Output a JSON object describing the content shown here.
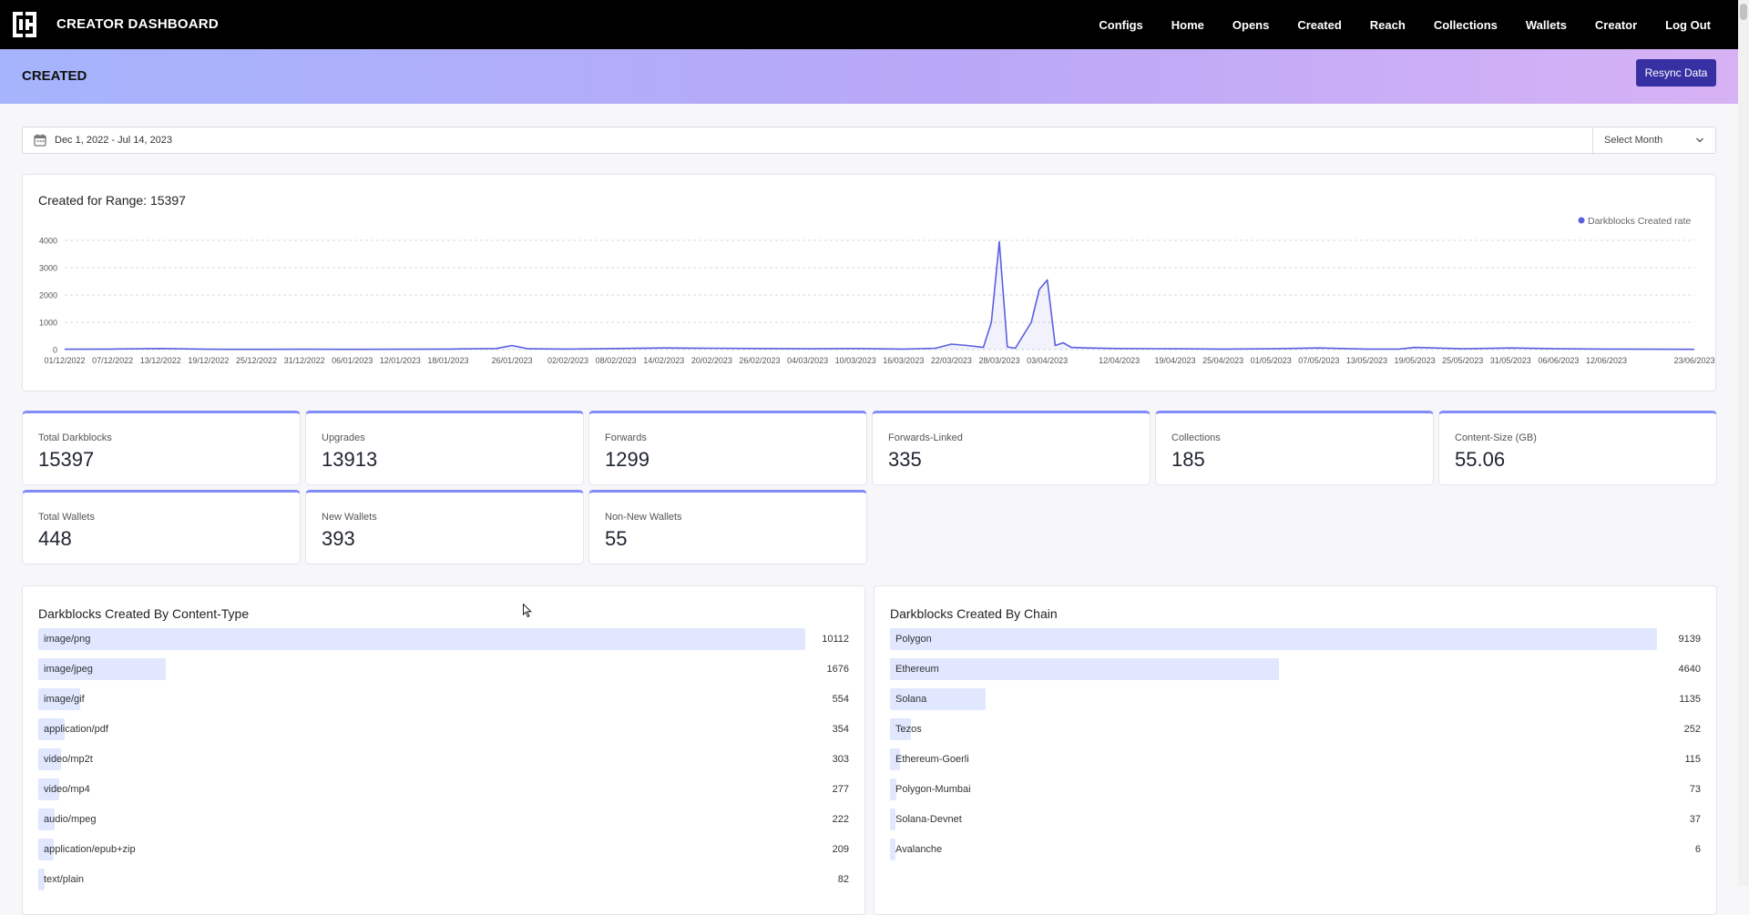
{
  "app": {
    "brand": "CREATOR DASHBOARD",
    "nav": [
      "Configs",
      "Home",
      "Opens",
      "Created",
      "Reach",
      "Collections",
      "Wallets",
      "Creator",
      "Log Out"
    ]
  },
  "header": {
    "title": "CREATED",
    "resync_label": "Resync Data",
    "accent_color": "#3730a3"
  },
  "filter": {
    "date_range": "Dec 1, 2022 - Jul 14, 2023",
    "month_placeholder": "Select Month"
  },
  "chart_data": {
    "type": "line",
    "title": "Created for Range: 15397",
    "legend": "Darkblocks Created rate",
    "legend_position": "top-right",
    "color": "#5b5fe0",
    "grid": true,
    "ylim": [
      0,
      4000
    ],
    "yticks": [
      0,
      1000,
      2000,
      3000,
      4000
    ],
    "xtick_labels": [
      "01/12/2022",
      "07/12/2022",
      "13/12/2022",
      "19/12/2022",
      "25/12/2022",
      "31/12/2022",
      "06/01/2023",
      "12/01/2023",
      "18/01/2023",
      "26/01/2023",
      "02/02/2023",
      "08/02/2023",
      "14/02/2023",
      "20/02/2023",
      "26/02/2023",
      "04/03/2023",
      "10/03/2023",
      "16/03/2023",
      "22/03/2023",
      "28/03/2023",
      "03/04/2023",
      "12/04/2023",
      "19/04/2023",
      "25/04/2023",
      "01/05/2023",
      "07/05/2023",
      "13/05/2023",
      "19/05/2023",
      "25/05/2023",
      "31/05/2023",
      "06/06/2023",
      "12/06/2023",
      "23/06/2023"
    ],
    "x": [
      "01/12/2022",
      "07/12/2022",
      "13/12/2022",
      "19/12/2022",
      "25/12/2022",
      "31/12/2022",
      "06/01/2023",
      "12/01/2023",
      "18/01/2023",
      "24/01/2023",
      "26/01/2023",
      "28/01/2023",
      "02/02/2023",
      "08/02/2023",
      "14/02/2023",
      "20/02/2023",
      "26/02/2023",
      "04/03/2023",
      "10/03/2023",
      "16/03/2023",
      "20/03/2023",
      "22/03/2023",
      "24/03/2023",
      "26/03/2023",
      "27/03/2023",
      "28/03/2023",
      "29/03/2023",
      "30/03/2023",
      "01/04/2023",
      "02/04/2023",
      "03/04/2023",
      "04/04/2023",
      "05/04/2023",
      "06/04/2023",
      "08/04/2023",
      "12/04/2023",
      "19/04/2023",
      "25/04/2023",
      "01/05/2023",
      "07/05/2023",
      "13/05/2023",
      "17/05/2023",
      "19/05/2023",
      "25/05/2023",
      "31/05/2023",
      "06/06/2023",
      "12/06/2023",
      "23/06/2023"
    ],
    "values": [
      15,
      20,
      40,
      15,
      10,
      15,
      10,
      15,
      20,
      40,
      150,
      30,
      20,
      40,
      60,
      50,
      40,
      30,
      40,
      20,
      50,
      200,
      150,
      80,
      1000,
      3950,
      100,
      50,
      1000,
      2200,
      2550,
      150,
      250,
      80,
      60,
      40,
      30,
      20,
      30,
      60,
      20,
      20,
      80,
      30,
      60,
      30,
      20,
      10
    ]
  },
  "stats": [
    {
      "label": "Total Darkblocks",
      "value": "15397"
    },
    {
      "label": "Upgrades",
      "value": "13913"
    },
    {
      "label": "Forwards",
      "value": "1299"
    },
    {
      "label": "Forwards-Linked",
      "value": "335"
    },
    {
      "label": "Collections",
      "value": "185"
    },
    {
      "label": "Content-Size (GB)",
      "value": "55.06"
    },
    {
      "label": "Total Wallets",
      "value": "448"
    },
    {
      "label": "New Wallets",
      "value": "393"
    },
    {
      "label": "Non-New Wallets",
      "value": "55"
    }
  ],
  "content_type": {
    "title": "Darkblocks Created By Content-Type",
    "bar_color": "#e0e7ff",
    "items": [
      {
        "label": "image/png",
        "value": 10112
      },
      {
        "label": "image/jpeg",
        "value": 1676
      },
      {
        "label": "image/gif",
        "value": 554
      },
      {
        "label": "application/pdf",
        "value": 354
      },
      {
        "label": "video/mp2t",
        "value": 303
      },
      {
        "label": "video/mp4",
        "value": 277
      },
      {
        "label": "audio/mpeg",
        "value": 222
      },
      {
        "label": "application/epub+zip",
        "value": 209
      },
      {
        "label": "text/plain",
        "value": 82
      }
    ]
  },
  "chain": {
    "title": "Darkblocks Created By Chain",
    "bar_color": "#e0e7ff",
    "items": [
      {
        "label": "Polygon",
        "value": 9139
      },
      {
        "label": "Ethereum",
        "value": 4640
      },
      {
        "label": "Solana",
        "value": 1135
      },
      {
        "label": "Tezos",
        "value": 252
      },
      {
        "label": "Ethereum-Goerli",
        "value": 115
      },
      {
        "label": "Polygon-Mumbai",
        "value": 73
      },
      {
        "label": "Solana-Devnet",
        "value": 37
      },
      {
        "label": "Avalanche",
        "value": 6
      }
    ]
  }
}
